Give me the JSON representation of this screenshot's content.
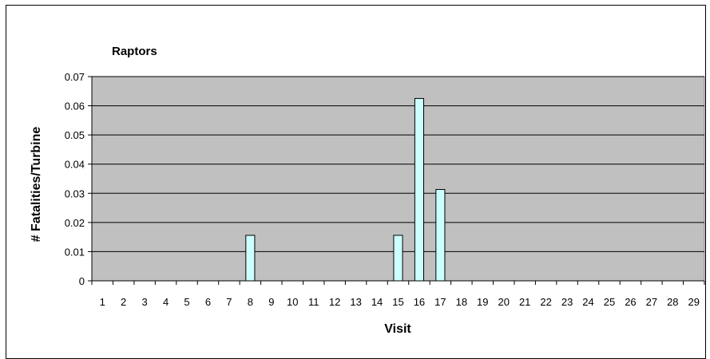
{
  "chart_data": {
    "type": "bar",
    "title": "Raptors",
    "xlabel": "Visit",
    "ylabel": "# Fatalities/Turbine",
    "ylim": [
      0,
      0.07
    ],
    "yticks": [
      "0",
      "0.01",
      "0.02",
      "0.03",
      "0.04",
      "0.05",
      "0.06",
      "0.07"
    ],
    "categories": [
      "1",
      "2",
      "3",
      "4",
      "5",
      "6",
      "7",
      "8",
      "9",
      "10",
      "11",
      "12",
      "13",
      "14",
      "15",
      "16",
      "17",
      "18",
      "19",
      "20",
      "21",
      "22",
      "23",
      "24",
      "25",
      "26",
      "27",
      "28",
      "29"
    ],
    "values": [
      0,
      0,
      0,
      0,
      0,
      0,
      0,
      0.0156,
      0,
      0,
      0,
      0,
      0,
      0,
      0.0156,
      0.0625,
      0.0313,
      0,
      0,
      0,
      0,
      0,
      0,
      0,
      0,
      0,
      0,
      0,
      0
    ],
    "grid": true,
    "colors": {
      "plot_bg": "#c0c0c0",
      "bar_fill": "#ccffff",
      "bar_stroke": "#000000",
      "grid": "#000000"
    }
  }
}
